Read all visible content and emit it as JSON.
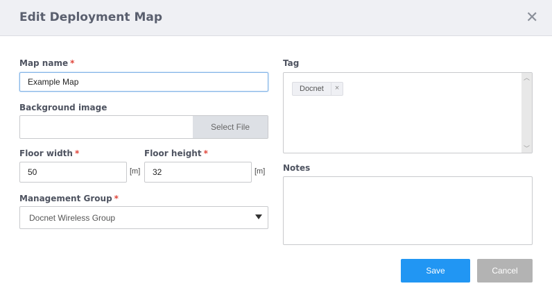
{
  "dialog": {
    "title": "Edit Deployment Map",
    "close_icon": "close-icon"
  },
  "form": {
    "map_name": {
      "label": "Map name",
      "required": "*",
      "value": "Example Map"
    },
    "background_image": {
      "label": "Background image",
      "value": "",
      "button": "Select File"
    },
    "floor_width": {
      "label": "Floor width",
      "required": "*",
      "value": "50",
      "unit": "[m]"
    },
    "floor_height": {
      "label": "Floor height",
      "required": "*",
      "value": "32",
      "unit": "[m]"
    },
    "management_group": {
      "label": "Management Group",
      "required": "*",
      "selected": "Docnet Wireless Group"
    },
    "tag": {
      "label": "Tag",
      "tags": [
        "Docnet"
      ],
      "remove": "×"
    },
    "notes": {
      "label": "Notes",
      "value": ""
    }
  },
  "footer": {
    "save": "Save",
    "cancel": "Cancel"
  },
  "colors": {
    "primary": "#2196f3",
    "cancel": "#b3b3b3",
    "required": "#e0453a"
  }
}
